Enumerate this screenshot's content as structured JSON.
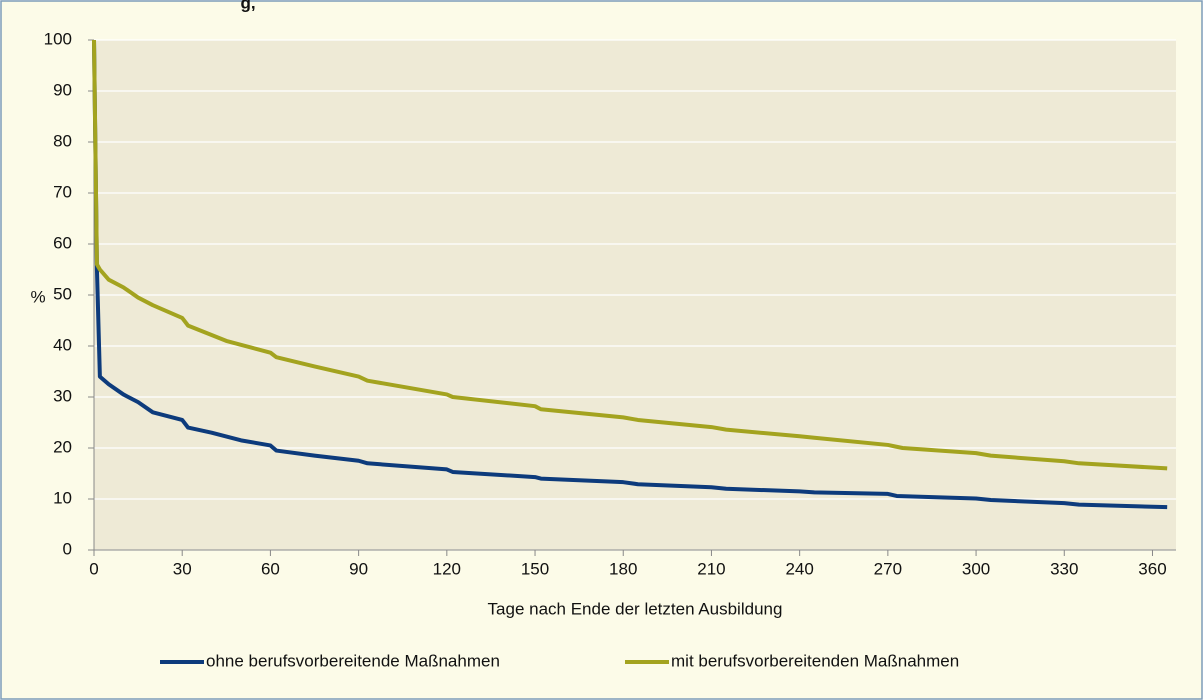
{
  "chart_data": {
    "type": "line",
    "title": "g,",
    "xlabel": "Tage nach Ende der letzten Ausbildung",
    "ylabel": "%",
    "xlim": [
      0,
      368
    ],
    "ylim": [
      0,
      100
    ],
    "xticks": [
      0,
      30,
      60,
      90,
      120,
      150,
      180,
      210,
      240,
      270,
      300,
      330,
      360
    ],
    "yticks": [
      0,
      10,
      20,
      30,
      40,
      50,
      60,
      70,
      80,
      90,
      100
    ],
    "grid": true,
    "legend": "bottom",
    "series": [
      {
        "name": "ohne berufsvorbereitende Maßnahmen",
        "color": "#0d3b7c",
        "x": [
          0,
          1,
          2,
          5,
          10,
          15,
          20,
          30,
          32,
          40,
          50,
          60,
          62,
          75,
          90,
          93,
          120,
          122,
          150,
          152,
          180,
          185,
          210,
          215,
          240,
          245,
          270,
          273,
          300,
          305,
          330,
          335,
          365
        ],
        "values": [
          100,
          55,
          34,
          32.5,
          30.5,
          29,
          27,
          25.5,
          24,
          23,
          21.5,
          20.5,
          19.5,
          18.5,
          17.5,
          17,
          15.8,
          15.3,
          14.3,
          14,
          13.3,
          12.9,
          12.3,
          12,
          11.5,
          11.3,
          11,
          10.6,
          10.1,
          9.8,
          9.2,
          8.9,
          8.4
        ]
      },
      {
        "name": "mit berufsvorbereitenden Maßnahmen",
        "color": "#a3a31f",
        "x": [
          0,
          1,
          2,
          5,
          10,
          15,
          20,
          30,
          32,
          45,
          60,
          62,
          75,
          90,
          93,
          120,
          122,
          150,
          152,
          180,
          185,
          210,
          215,
          240,
          245,
          270,
          275,
          300,
          305,
          330,
          335,
          365
        ],
        "values": [
          100,
          56,
          55,
          53,
          51.5,
          49.5,
          48,
          45.5,
          44,
          41,
          38.7,
          37.8,
          36,
          34,
          33.2,
          30.5,
          30,
          28.2,
          27.6,
          26,
          25.5,
          24.1,
          23.6,
          22.3,
          22,
          20.6,
          20,
          19,
          18.5,
          17.4,
          17,
          16
        ]
      }
    ]
  }
}
